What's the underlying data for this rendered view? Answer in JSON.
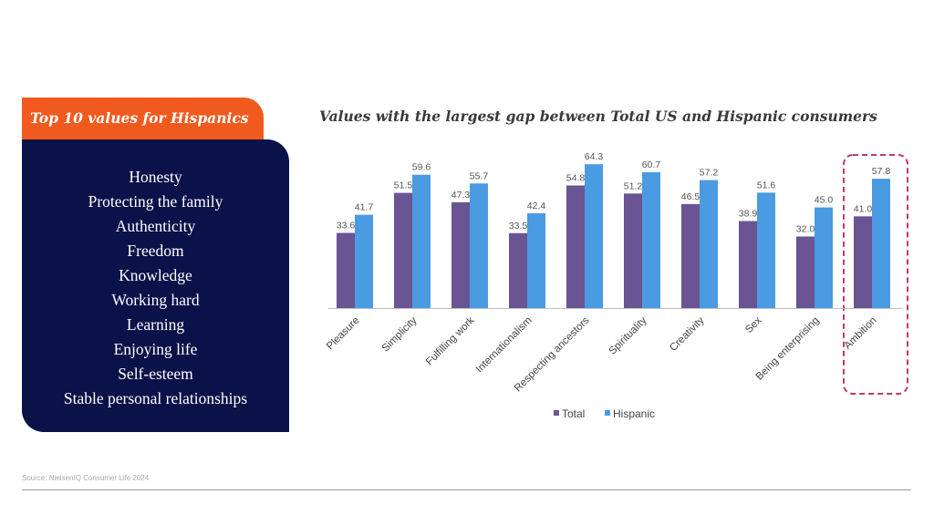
{
  "sidebar": {
    "heading": "Top 10 values for Hispanics",
    "items": [
      "Honesty",
      "Protecting the family",
      "Authenticity",
      "Freedom",
      "Knowledge",
      "Working hard",
      "Learning",
      "Enjoying life",
      "Self-esteem",
      "Stable personal relationships"
    ]
  },
  "source": "Source: NielsenIQ Consumer Life 2024",
  "chart_data": {
    "type": "bar",
    "title": "Values with the largest gap between Total US and Hispanic consumers",
    "categories": [
      "Pleasure",
      "Simplicity",
      "Fulfilling work",
      "Internationalism",
      "Respecting ancestors",
      "Spirituality",
      "Creativity",
      "Sex",
      "Being enterprising",
      "Ambition"
    ],
    "series": [
      {
        "name": "Total",
        "values": [
          33.6,
          51.5,
          47.3,
          33.5,
          54.8,
          51.2,
          46.5,
          38.9,
          32.0,
          41.0
        ],
        "labels": [
          "33.6",
          "51.5",
          "47.3",
          "33.5",
          "54.8",
          "51.2",
          "46.5",
          "38.9",
          "32.0",
          "41.0"
        ],
        "color": "#6a5494"
      },
      {
        "name": "Hispanic",
        "values": [
          41.7,
          59.6,
          55.7,
          42.4,
          64.3,
          60.7,
          57.2,
          51.6,
          45.0,
          57.8
        ],
        "labels": [
          "41.7",
          "59.6",
          "55.7",
          "42.4",
          "64.3",
          "60.7",
          "57.2",
          "51.6",
          "45.0",
          "57.8"
        ],
        "color": "#4a9be2"
      }
    ],
    "ylim": [
      0,
      66
    ],
    "highlight_category": "Ambition",
    "highlight_color": "#c2386a",
    "legend_position": "bottom",
    "grid": false
  }
}
